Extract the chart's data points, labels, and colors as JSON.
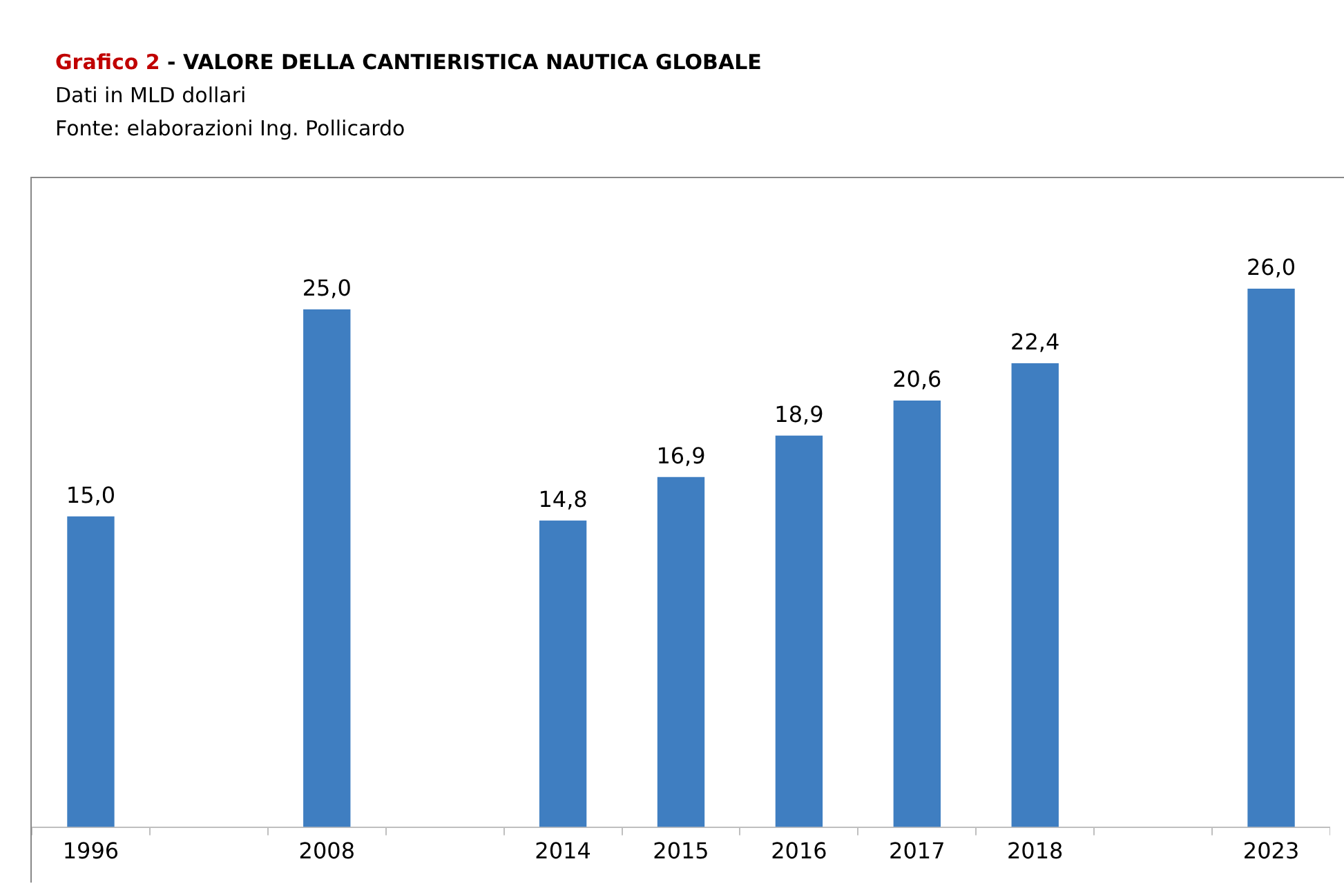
{
  "chart_data": {
    "type": "bar",
    "title": "Grafico 2 - VALORE DELLA CANTIERISTICA NAUTICA GLOBALE",
    "subtitle": "Dati in MLD dollari",
    "annotations": [
      "Fonte: elaborazioni Ing. Pollicardo"
    ],
    "categories": [
      "1996",
      null,
      "2008",
      null,
      "2014",
      "2015",
      "2016",
      "2017",
      "2018",
      null,
      "2023"
    ],
    "values": [
      15.0,
      null,
      25.0,
      null,
      14.8,
      16.9,
      18.9,
      20.6,
      22.4,
      null,
      26.0
    ],
    "value_labels": [
      "15,0",
      null,
      "25,0",
      null,
      "14,8",
      "16,9",
      "18,9",
      "20,6",
      "22,4",
      null,
      "26,0"
    ],
    "color": "#3f7ec1"
  }
}
